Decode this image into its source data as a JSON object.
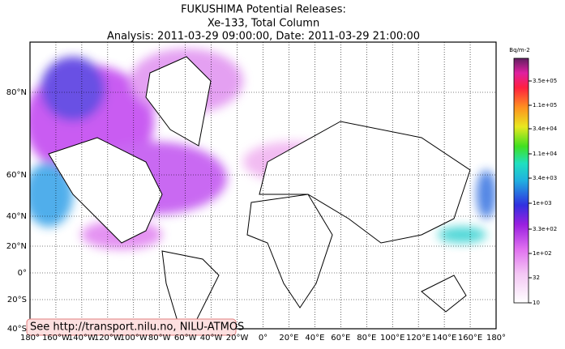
{
  "header": {
    "title_lines": [
      "FUKUSHIMA Potential Releases:",
      "Xe-133, Total Column",
      "Analysis: 2011-03-29  09:00:00, Date: 2011-03-29  21:00:00"
    ]
  },
  "map": {
    "lat_labels": [
      "80°N",
      "60°N",
      "40°N",
      "20°N",
      "0°",
      "20°S",
      "40°S"
    ],
    "lon_labels": [
      "180°",
      "160°W",
      "140°W",
      "120°W",
      "100°W",
      "80°W",
      "60°W",
      "40°W",
      "20°W",
      "0°",
      "20°E",
      "40°E",
      "60°E",
      "80°E",
      "100°E",
      "120°E",
      "140°E",
      "160°E",
      "180°"
    ],
    "note": "See http://transport.nilu.no, NILU-ATMOS"
  },
  "colorbar": {
    "unit": "Bq/m-2",
    "labels": [
      "3.5e+05",
      "1.1e+05",
      "3.4e+04",
      "1.1e+04",
      "3.4e+03",
      "1e+03",
      "3.3e+02",
      "1e+02",
      "32",
      "10"
    ]
  }
}
